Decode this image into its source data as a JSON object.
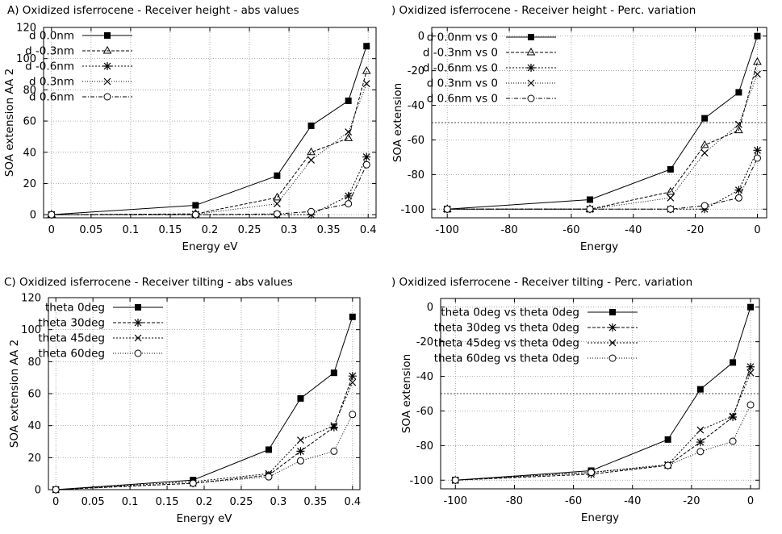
{
  "chart_data": [
    {
      "type": "line",
      "title": "A) Oxidized  isferrocene - Receiver height - abs values",
      "xlabel": "Energy  eV",
      "ylabel": "SOA extension  AA 2",
      "xlim": [
        -0.01,
        0.41
      ],
      "ylim": [
        -2,
        120
      ],
      "xticks": [
        0,
        0.05,
        0.1,
        0.15,
        0.2,
        0.25,
        0.3,
        0.35,
        0.4
      ],
      "xtick_labels": [
        "0",
        "0.05",
        "0.1",
        "0.15",
        "0.2",
        "0.25",
        "0.3",
        "0.35",
        "0.4"
      ],
      "yticks": [
        0,
        20,
        40,
        60,
        80,
        100,
        120
      ],
      "ytick_labels": [
        "0",
        "20",
        "40",
        "60",
        "80",
        "100",
        "120"
      ],
      "grid": true,
      "legend_position": "top-left",
      "series": [
        {
          "name": "d  0.0nm",
          "marker": "filled-square",
          "dash": "",
          "x": [
            0,
            0.182,
            0.285,
            0.328,
            0.375,
            0.398
          ],
          "values": [
            0,
            6,
            25,
            57,
            73,
            108
          ]
        },
        {
          "name": "d  -0.3nm",
          "marker": "triangle",
          "dash": "4,2",
          "x": [
            0,
            0.182,
            0.285,
            0.328,
            0.375,
            0.398
          ],
          "values": [
            0,
            0.5,
            11,
            40,
            49,
            92
          ]
        },
        {
          "name": "d  -0.6nm",
          "marker": "star",
          "dash": "2,2",
          "x": [
            0,
            0.182,
            0.285,
            0.328,
            0.375,
            0.398
          ],
          "values": [
            0,
            0,
            0,
            0,
            12,
            37
          ]
        },
        {
          "name": "d  0.3nm",
          "marker": "cross",
          "dash": "1,2",
          "x": [
            0,
            0.182,
            0.285,
            0.328,
            0.375,
            0.398
          ],
          "values": [
            0,
            0.3,
            7,
            35,
            53,
            84
          ]
        },
        {
          "name": "d  0.6nm",
          "marker": "circle",
          "dash": "5,2,1,2",
          "x": [
            0,
            0.182,
            0.285,
            0.328,
            0.375,
            0.398
          ],
          "values": [
            0,
            0,
            0.5,
            2,
            7,
            32
          ]
        }
      ]
    },
    {
      "type": "line",
      "title": ") Oxidized  isferrocene - Receiver height - Perc. variation",
      "xlabel": "Energy",
      "ylabel": "SOA extension",
      "xlim": [
        -105,
        3
      ],
      "ylim": [
        -105,
        5
      ],
      "xticks": [
        -100,
        -80,
        -60,
        -40,
        -20,
        0
      ],
      "xtick_labels": [
        "-100",
        "-80",
        "-60",
        "-40",
        "-20",
        "0"
      ],
      "yticks": [
        -100,
        -80,
        -60,
        -40,
        -20,
        0
      ],
      "ytick_labels": [
        "-100",
        "-80",
        "-60",
        "-40",
        "-20",
        "0"
      ],
      "hline": -50,
      "grid": true,
      "legend_position": "top-left",
      "series": [
        {
          "name": "d  0.0nm vs 0",
          "marker": "filled-square",
          "dash": "",
          "x": [
            -100,
            -54,
            -28,
            -17,
            -6,
            0
          ],
          "values": [
            -100,
            -94.5,
            -77,
            -47.5,
            -32.5,
            0
          ]
        },
        {
          "name": "d  -0.3nm vs 0",
          "marker": "triangle",
          "dash": "4,2",
          "x": [
            -100,
            -54,
            -28,
            -17,
            -6,
            0
          ],
          "values": [
            -100,
            -100,
            -90,
            -63,
            -54.5,
            -15
          ]
        },
        {
          "name": "d  -0.6nm vs 0",
          "marker": "star",
          "dash": "2,2",
          "x": [
            -100,
            -54,
            -28,
            -17,
            -6,
            0
          ],
          "values": [
            -100,
            -100,
            -100,
            -100,
            -89,
            -66
          ]
        },
        {
          "name": "d  0.3nm vs 0",
          "marker": "cross",
          "dash": "1,2",
          "x": [
            -100,
            -54,
            -28,
            -17,
            -6,
            0
          ],
          "values": [
            -100,
            -100,
            -93.5,
            -67.5,
            -51,
            -22
          ]
        },
        {
          "name": "d  0.6nm vs 0",
          "marker": "circle",
          "dash": "5,2,1,2",
          "x": [
            -100,
            -54,
            -28,
            -17,
            -6,
            0
          ],
          "values": [
            -100,
            -100,
            -100,
            -98,
            -93.5,
            -70.5
          ]
        }
      ]
    },
    {
      "type": "line",
      "title": "C) Oxidized  isferrocene - Receiver tilting - abs values",
      "xlabel": "Energy  eV",
      "ylabel": "SOA extension  AA 2",
      "xlim": [
        -0.01,
        0.41
      ],
      "ylim": [
        0,
        120
      ],
      "xticks": [
        0,
        0.05,
        0.1,
        0.15,
        0.2,
        0.25,
        0.3,
        0.35,
        0.4
      ],
      "xtick_labels": [
        "0",
        "0.05",
        "0.1",
        "0.15",
        "0.2",
        "0.25",
        "0.3",
        "0.35",
        "0.4"
      ],
      "yticks": [
        0,
        20,
        40,
        60,
        80,
        100,
        120
      ],
      "ytick_labels": [
        "0",
        "20",
        "40",
        "60",
        "80",
        "100",
        "120"
      ],
      "grid": true,
      "legend_position": "top-left",
      "series": [
        {
          "name": "theta 0deg",
          "marker": "filled-square",
          "dash": "",
          "x": [
            0,
            0.185,
            0.287,
            0.33,
            0.375,
            0.4
          ],
          "values": [
            0,
            6,
            25,
            57,
            73,
            108
          ]
        },
        {
          "name": "theta 30deg",
          "marker": "star",
          "dash": "4,2",
          "x": [
            0,
            0.185,
            0.287,
            0.33,
            0.375,
            0.4
          ],
          "values": [
            0,
            4,
            9,
            24,
            39,
            71
          ]
        },
        {
          "name": "theta 45deg",
          "marker": "cross",
          "dash": "2,2",
          "x": [
            0,
            0.185,
            0.287,
            0.33,
            0.375,
            0.4
          ],
          "values": [
            0,
            5,
            10,
            31,
            40,
            67
          ]
        },
        {
          "name": "theta 60deg",
          "marker": "circle",
          "dash": "1,2",
          "x": [
            0,
            0.185,
            0.287,
            0.33,
            0.375,
            0.4
          ],
          "values": [
            0,
            4,
            8,
            18,
            24,
            47
          ]
        }
      ]
    },
    {
      "type": "line",
      "title": ") Oxidized  isferrocene - Receiver tilting - Perc. variation",
      "xlabel": "Energy",
      "ylabel": "SOA extension",
      "xlim": [
        -105,
        3
      ],
      "ylim": [
        -105,
        5
      ],
      "xticks": [
        -100,
        -80,
        -60,
        -40,
        -20,
        0
      ],
      "xtick_labels": [
        "-100",
        "-80",
        "-60",
        "-40",
        "-20",
        "0"
      ],
      "yticks": [
        -100,
        -80,
        -60,
        -40,
        -20,
        0
      ],
      "ytick_labels": [
        "-100",
        "-80",
        "-60",
        "-40",
        "-20",
        "0"
      ],
      "hline": -50,
      "grid": true,
      "legend_position": "top-left",
      "series": [
        {
          "name": "theta 0deg vs theta 0deg",
          "marker": "filled-square",
          "dash": "",
          "x": [
            -100,
            -54,
            -28,
            -17,
            -6,
            0
          ],
          "values": [
            -100,
            -94.5,
            -76.5,
            -47.5,
            -32,
            0
          ]
        },
        {
          "name": "theta 30deg vs theta 0deg",
          "marker": "star",
          "dash": "4,2",
          "x": [
            -100,
            -54,
            -28,
            -17,
            -6,
            0
          ],
          "values": [
            -100,
            -96.5,
            -91.5,
            -78,
            -63.5,
            -34.5
          ]
        },
        {
          "name": "theta 45deg vs theta 0deg",
          "marker": "cross",
          "dash": "2,2",
          "x": [
            -100,
            -54,
            -28,
            -17,
            -6,
            0
          ],
          "values": [
            -100,
            -95.5,
            -91,
            -71,
            -63,
            -38
          ]
        },
        {
          "name": "theta 60deg vs theta 0deg",
          "marker": "circle",
          "dash": "1,2",
          "x": [
            -100,
            -54,
            -28,
            -17,
            -6,
            0
          ],
          "values": [
            -100,
            -95.5,
            -91.5,
            -83.5,
            -77.5,
            -56.5
          ]
        }
      ]
    }
  ]
}
